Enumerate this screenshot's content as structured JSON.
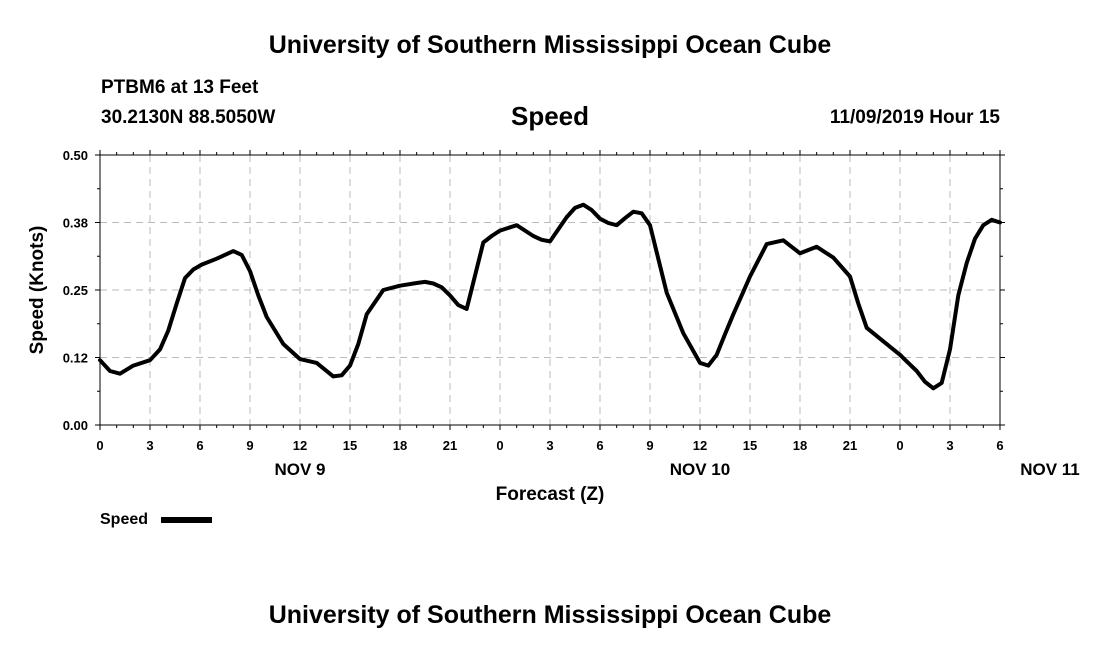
{
  "header": {
    "title_top": "University of Southern Mississippi Ocean Cube",
    "title_bottom": "University of Southern Mississippi Ocean Cube",
    "station": "PTBM6 at 13 Feet",
    "location": "30.2130N 88.5050W",
    "datetime": "11/09/2019 Hour 15"
  },
  "chart_data": {
    "type": "line",
    "title": "Speed",
    "xlabel": "Forecast (Z)",
    "ylabel": "Speed (Knots)",
    "x_unit": "hours from 00Z Nov 9",
    "x_tick_labels": [
      "0",
      "3",
      "6",
      "9",
      "12",
      "15",
      "18",
      "21",
      "0",
      "3",
      "6",
      "9",
      "12",
      "15",
      "18",
      "21",
      "0",
      "3",
      "6"
    ],
    "day_labels": [
      {
        "label": "NOV 9",
        "x": 12
      },
      {
        "label": "NOV 10",
        "x": 36
      },
      {
        "label": "NOV 11",
        "x": 57
      }
    ],
    "y_ticks": [
      "0.00",
      "0.12",
      "0.25",
      "0.38",
      "0.50"
    ],
    "xlim": [
      0,
      54
    ],
    "ylim": [
      0,
      0.5
    ],
    "grid": true,
    "legend_position": "bottom-left",
    "series": [
      {
        "name": "Speed",
        "color": "#000000",
        "x": [
          0,
          0.6,
          1.2,
          2,
          3,
          3.6,
          4.1,
          4.6,
          5.1,
          5.6,
          6.1,
          7,
          8,
          8.5,
          9,
          9.5,
          10,
          11,
          12,
          13,
          14,
          14.5,
          15,
          15.5,
          16,
          17,
          18,
          19,
          19.5,
          20,
          20.5,
          21,
          21.5,
          22,
          23,
          23.5,
          24,
          25,
          26,
          26.5,
          27,
          28,
          28.5,
          29,
          29.5,
          30,
          30.5,
          31,
          31.5,
          32,
          32.5,
          33,
          34,
          35,
          36,
          36.5,
          37,
          37.5,
          38,
          38.5,
          39,
          40,
          41,
          42,
          43,
          44,
          45,
          45.5,
          46,
          47,
          48,
          48.5,
          49,
          49.5,
          50,
          50.5,
          51,
          51.5,
          52,
          52.5,
          53,
          53.5,
          54
        ],
        "y": [
          0.12,
          0.1,
          0.095,
          0.11,
          0.12,
          0.14,
          0.175,
          0.225,
          0.272,
          0.288,
          0.297,
          0.308,
          0.322,
          0.315,
          0.285,
          0.24,
          0.2,
          0.15,
          0.122,
          0.115,
          0.09,
          0.092,
          0.11,
          0.15,
          0.205,
          0.25,
          0.258,
          0.263,
          0.265,
          0.262,
          0.255,
          0.24,
          0.222,
          0.215,
          0.338,
          0.35,
          0.36,
          0.37,
          0.35,
          0.343,
          0.34,
          0.385,
          0.402,
          0.408,
          0.398,
          0.382,
          0.374,
          0.37,
          0.383,
          0.395,
          0.392,
          0.37,
          0.245,
          0.17,
          0.115,
          0.11,
          0.13,
          0.168,
          0.205,
          0.24,
          0.275,
          0.335,
          0.342,
          0.318,
          0.33,
          0.31,
          0.275,
          0.225,
          0.18,
          0.155,
          0.13,
          0.115,
          0.1,
          0.08,
          0.068,
          0.078,
          0.14,
          0.24,
          0.3,
          0.345,
          0.37,
          0.38,
          0.375
        ]
      }
    ]
  },
  "legend": {
    "label": "Speed"
  }
}
